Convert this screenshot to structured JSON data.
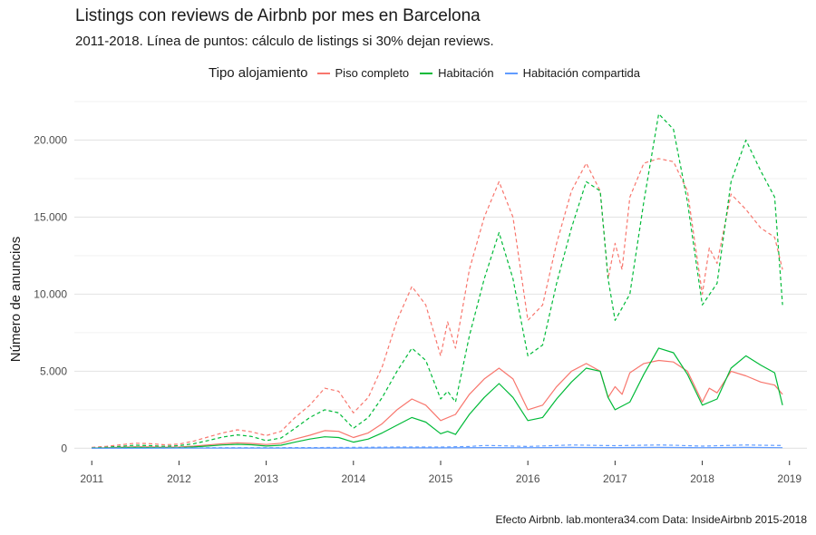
{
  "header": {
    "title": "Listings con reviews de Airbnb por mes en Barcelona",
    "subtitle": "2011-2018. Línea de puntos: cálculo de listings si 30% dejan reviews.",
    "caption": "Efecto Airbnb. lab.montera34.com Data: InsideAirbnb 2015-2018"
  },
  "chart_data": {
    "type": "line",
    "title": "Listings con reviews de Airbnb por mes en Barcelona",
    "subtitle": "2011-2018. Línea de puntos: cálculo de listings si 30% dejan reviews.",
    "xlabel": "",
    "ylabel": "Número de anuncios",
    "xlim": [
      2010.8,
      2019.2
    ],
    "ylim": [
      -800,
      22500
    ],
    "x_ticks": [
      2011,
      2012,
      2013,
      2014,
      2015,
      2016,
      2017,
      2018,
      2019
    ],
    "x_tick_labels": [
      "2011",
      "2012",
      "2013",
      "2014",
      "2015",
      "2016",
      "2017",
      "2018",
      "2019"
    ],
    "y_ticks": [
      0,
      5000,
      10000,
      15000,
      20000
    ],
    "y_tick_labels": [
      "0",
      "5.000",
      "10.000",
      "15.000",
      "20.000"
    ],
    "grid": true,
    "legend": {
      "title": "Tipo alojamiento",
      "position": "top"
    },
    "series": [
      {
        "name": "Piso completo",
        "color": "#F8766D",
        "dash": false,
        "points": [
          [
            2011.0,
            20
          ],
          [
            2011.17,
            40
          ],
          [
            2011.33,
            70
          ],
          [
            2011.5,
            100
          ],
          [
            2011.67,
            90
          ],
          [
            2011.83,
            70
          ],
          [
            2012.0,
            80
          ],
          [
            2012.17,
            140
          ],
          [
            2012.33,
            220
          ],
          [
            2012.5,
            300
          ],
          [
            2012.67,
            360
          ],
          [
            2012.83,
            320
          ],
          [
            2013.0,
            250
          ],
          [
            2013.17,
            330
          ],
          [
            2013.33,
            600
          ],
          [
            2013.5,
            850
          ],
          [
            2013.67,
            1150
          ],
          [
            2013.83,
            1100
          ],
          [
            2014.0,
            700
          ],
          [
            2014.17,
            1000
          ],
          [
            2014.33,
            1600
          ],
          [
            2014.5,
            2500
          ],
          [
            2014.67,
            3200
          ],
          [
            2014.83,
            2800
          ],
          [
            2015.0,
            1800
          ],
          [
            2015.17,
            2200
          ],
          [
            2015.33,
            3500
          ],
          [
            2015.5,
            4500
          ],
          [
            2015.67,
            5200
          ],
          [
            2015.83,
            4500
          ],
          [
            2016.0,
            2500
          ],
          [
            2016.17,
            2800
          ],
          [
            2016.33,
            4000
          ],
          [
            2016.5,
            5000
          ],
          [
            2016.67,
            5500
          ],
          [
            2016.83,
            5000
          ],
          [
            2016.92,
            3300
          ],
          [
            2017.0,
            4000
          ],
          [
            2017.08,
            3500
          ],
          [
            2017.17,
            4900
          ],
          [
            2017.33,
            5500
          ],
          [
            2017.5,
            5700
          ],
          [
            2017.67,
            5600
          ],
          [
            2017.83,
            5000
          ],
          [
            2018.0,
            3000
          ],
          [
            2018.08,
            3900
          ],
          [
            2018.17,
            3600
          ],
          [
            2018.33,
            5000
          ],
          [
            2018.5,
            4700
          ],
          [
            2018.67,
            4300
          ],
          [
            2018.83,
            4100
          ],
          [
            2018.92,
            3500
          ]
        ]
      },
      {
        "name": "Piso completo (30%)",
        "color": "#F8766D",
        "dash": true,
        "points": [
          [
            2011.0,
            60
          ],
          [
            2011.17,
            130
          ],
          [
            2011.33,
            230
          ],
          [
            2011.5,
            330
          ],
          [
            2011.67,
            300
          ],
          [
            2011.83,
            230
          ],
          [
            2012.0,
            270
          ],
          [
            2012.17,
            470
          ],
          [
            2012.33,
            730
          ],
          [
            2012.5,
            1000
          ],
          [
            2012.67,
            1200
          ],
          [
            2012.83,
            1070
          ],
          [
            2013.0,
            830
          ],
          [
            2013.17,
            1100
          ],
          [
            2013.33,
            2000
          ],
          [
            2013.5,
            2800
          ],
          [
            2013.67,
            3900
          ],
          [
            2013.83,
            3700
          ],
          [
            2014.0,
            2300
          ],
          [
            2014.17,
            3300
          ],
          [
            2014.33,
            5300
          ],
          [
            2014.5,
            8300
          ],
          [
            2014.67,
            10500
          ],
          [
            2014.83,
            9300
          ],
          [
            2015.0,
            6000
          ],
          [
            2015.08,
            8200
          ],
          [
            2015.17,
            6500
          ],
          [
            2015.33,
            11600
          ],
          [
            2015.5,
            15000
          ],
          [
            2015.67,
            17300
          ],
          [
            2015.83,
            15000
          ],
          [
            2016.0,
            8300
          ],
          [
            2016.17,
            9300
          ],
          [
            2016.33,
            13300
          ],
          [
            2016.5,
            16700
          ],
          [
            2016.67,
            18500
          ],
          [
            2016.83,
            16700
          ],
          [
            2016.92,
            11000
          ],
          [
            2017.0,
            13300
          ],
          [
            2017.08,
            11600
          ],
          [
            2017.17,
            16300
          ],
          [
            2017.33,
            18500
          ],
          [
            2017.5,
            18800
          ],
          [
            2017.67,
            18600
          ],
          [
            2017.83,
            16700
          ],
          [
            2018.0,
            10000
          ],
          [
            2018.08,
            13000
          ],
          [
            2018.17,
            12000
          ],
          [
            2018.33,
            16500
          ],
          [
            2018.5,
            15500
          ],
          [
            2018.67,
            14300
          ],
          [
            2018.83,
            13700
          ],
          [
            2018.92,
            11600
          ]
        ]
      },
      {
        "name": "Habitación",
        "color": "#00BA38",
        "dash": false,
        "points": [
          [
            2011.0,
            10
          ],
          [
            2011.17,
            20
          ],
          [
            2011.33,
            40
          ],
          [
            2011.5,
            60
          ],
          [
            2011.67,
            50
          ],
          [
            2011.83,
            40
          ],
          [
            2012.0,
            50
          ],
          [
            2012.17,
            90
          ],
          [
            2012.33,
            150
          ],
          [
            2012.5,
            220
          ],
          [
            2012.67,
            260
          ],
          [
            2012.83,
            230
          ],
          [
            2013.0,
            150
          ],
          [
            2013.17,
            200
          ],
          [
            2013.33,
            400
          ],
          [
            2013.5,
            600
          ],
          [
            2013.67,
            750
          ],
          [
            2013.83,
            700
          ],
          [
            2014.0,
            400
          ],
          [
            2014.17,
            600
          ],
          [
            2014.33,
            1000
          ],
          [
            2014.5,
            1500
          ],
          [
            2014.67,
            2000
          ],
          [
            2014.83,
            1700
          ],
          [
            2015.0,
            950
          ],
          [
            2015.08,
            1100
          ],
          [
            2015.17,
            900
          ],
          [
            2015.33,
            2200
          ],
          [
            2015.5,
            3300
          ],
          [
            2015.67,
            4200
          ],
          [
            2015.83,
            3300
          ],
          [
            2016.0,
            1800
          ],
          [
            2016.17,
            2000
          ],
          [
            2016.33,
            3200
          ],
          [
            2016.5,
            4300
          ],
          [
            2016.67,
            5200
          ],
          [
            2016.83,
            5000
          ],
          [
            2016.92,
            3300
          ],
          [
            2017.0,
            2500
          ],
          [
            2017.17,
            3000
          ],
          [
            2017.33,
            4800
          ],
          [
            2017.5,
            6500
          ],
          [
            2017.67,
            6200
          ],
          [
            2017.83,
            4800
          ],
          [
            2018.0,
            2800
          ],
          [
            2018.17,
            3200
          ],
          [
            2018.33,
            5200
          ],
          [
            2018.5,
            6000
          ],
          [
            2018.67,
            5400
          ],
          [
            2018.83,
            4900
          ],
          [
            2018.92,
            2800
          ]
        ]
      },
      {
        "name": "Habitación (30%)",
        "color": "#00BA38",
        "dash": true,
        "points": [
          [
            2011.0,
            30
          ],
          [
            2011.17,
            70
          ],
          [
            2011.33,
            130
          ],
          [
            2011.5,
            200
          ],
          [
            2011.67,
            170
          ],
          [
            2011.83,
            130
          ],
          [
            2012.0,
            170
          ],
          [
            2012.17,
            300
          ],
          [
            2012.33,
            500
          ],
          [
            2012.5,
            730
          ],
          [
            2012.67,
            870
          ],
          [
            2012.83,
            770
          ],
          [
            2013.0,
            500
          ],
          [
            2013.17,
            670
          ],
          [
            2013.33,
            1300
          ],
          [
            2013.5,
            2000
          ],
          [
            2013.67,
            2500
          ],
          [
            2013.83,
            2300
          ],
          [
            2014.0,
            1300
          ],
          [
            2014.17,
            2000
          ],
          [
            2014.33,
            3300
          ],
          [
            2014.5,
            5000
          ],
          [
            2014.67,
            6500
          ],
          [
            2014.83,
            5700
          ],
          [
            2015.0,
            3200
          ],
          [
            2015.08,
            3700
          ],
          [
            2015.17,
            3000
          ],
          [
            2015.33,
            7300
          ],
          [
            2015.5,
            11000
          ],
          [
            2015.67,
            14000
          ],
          [
            2015.83,
            11000
          ],
          [
            2016.0,
            6000
          ],
          [
            2016.17,
            6700
          ],
          [
            2016.33,
            10700
          ],
          [
            2016.5,
            14300
          ],
          [
            2016.67,
            17300
          ],
          [
            2016.83,
            16700
          ],
          [
            2016.92,
            11000
          ],
          [
            2017.0,
            8300
          ],
          [
            2017.17,
            10000
          ],
          [
            2017.33,
            16000
          ],
          [
            2017.5,
            21700
          ],
          [
            2017.67,
            20700
          ],
          [
            2017.83,
            16000
          ],
          [
            2018.0,
            9300
          ],
          [
            2018.17,
            10700
          ],
          [
            2018.33,
            17300
          ],
          [
            2018.5,
            20000
          ],
          [
            2018.67,
            18000
          ],
          [
            2018.83,
            16300
          ],
          [
            2018.92,
            9300
          ]
        ]
      },
      {
        "name": "Habitación compartida",
        "color": "#619CFF",
        "dash": false,
        "points": [
          [
            2011.0,
            5
          ],
          [
            2011.5,
            8
          ],
          [
            2012.0,
            10
          ],
          [
            2012.5,
            15
          ],
          [
            2013.0,
            15
          ],
          [
            2013.5,
            20
          ],
          [
            2014.0,
            20
          ],
          [
            2014.5,
            30
          ],
          [
            2015.0,
            30
          ],
          [
            2015.5,
            50
          ],
          [
            2016.0,
            40
          ],
          [
            2016.5,
            60
          ],
          [
            2017.0,
            50
          ],
          [
            2017.5,
            60
          ],
          [
            2018.0,
            40
          ],
          [
            2018.5,
            60
          ],
          [
            2018.92,
            40
          ]
        ]
      },
      {
        "name": "Habitación compartida (30%)",
        "color": "#619CFF",
        "dash": true,
        "points": [
          [
            2011.0,
            10
          ],
          [
            2011.5,
            20
          ],
          [
            2012.0,
            30
          ],
          [
            2012.5,
            40
          ],
          [
            2013.0,
            40
          ],
          [
            2013.5,
            50
          ],
          [
            2014.0,
            60
          ],
          [
            2014.5,
            80
          ],
          [
            2015.0,
            80
          ],
          [
            2015.33,
            120
          ],
          [
            2015.5,
            180
          ],
          [
            2015.67,
            170
          ],
          [
            2016.0,
            120
          ],
          [
            2016.5,
            220
          ],
          [
            2016.67,
            200
          ],
          [
            2017.0,
            170
          ],
          [
            2017.5,
            220
          ],
          [
            2017.67,
            200
          ],
          [
            2018.0,
            140
          ],
          [
            2018.5,
            220
          ],
          [
            2018.67,
            200
          ],
          [
            2018.92,
            180
          ]
        ]
      }
    ]
  }
}
